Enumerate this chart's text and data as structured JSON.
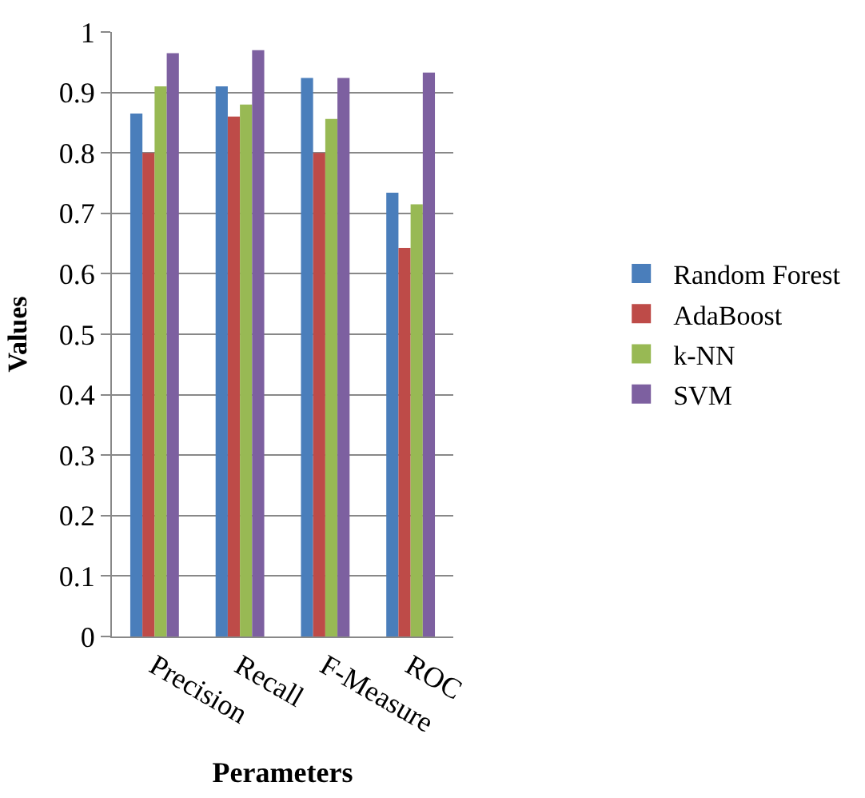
{
  "chart_data": {
    "type": "bar",
    "xlabel": "Perameters",
    "ylabel": "Values",
    "categories": [
      "Precision",
      "Recall",
      "F-Measure",
      "ROC"
    ],
    "series": [
      {
        "name": "Random Forest",
        "color": "#4a7ebb",
        "values": [
          0.865,
          0.91,
          0.924,
          0.734
        ]
      },
      {
        "name": "AdaBoost",
        "color": "#be4b48",
        "values": [
          0.8,
          0.86,
          0.8,
          0.643
        ]
      },
      {
        "name": "k-NN",
        "color": "#98b954",
        "values": [
          0.91,
          0.88,
          0.856,
          0.715
        ]
      },
      {
        "name": "SVM",
        "color": "#7d60a0",
        "values": [
          0.965,
          0.97,
          0.924,
          0.933
        ]
      }
    ],
    "ylim": [
      0,
      1
    ],
    "yticks": [
      0,
      0.1,
      0.2,
      0.3,
      0.4,
      0.5,
      0.6,
      0.7,
      0.8,
      0.9,
      1
    ],
    "grid": "y",
    "legend": "right"
  }
}
